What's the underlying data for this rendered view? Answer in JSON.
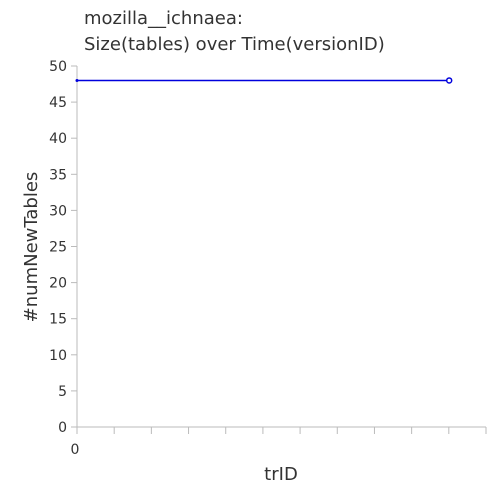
{
  "chart_data": {
    "type": "line",
    "title": "mozilla__ichnaea:",
    "subtitle": "Size(tables) over Time(versionID)",
    "xlabel": "trID",
    "ylabel": "#numNewTables",
    "x_tick_labels": [
      "0"
    ],
    "y_ticks": [
      0,
      5,
      10,
      15,
      20,
      25,
      30,
      35,
      40,
      45,
      50
    ],
    "ylim": [
      0,
      50
    ],
    "x_minor_tick_count": 11,
    "grid": false,
    "legend": "none",
    "series": [
      {
        "color": "#0000dd",
        "points": [
          {
            "x_frac": 0.0,
            "y": 48
          },
          {
            "x_frac": 0.91,
            "y": 48
          }
        ]
      }
    ]
  }
}
